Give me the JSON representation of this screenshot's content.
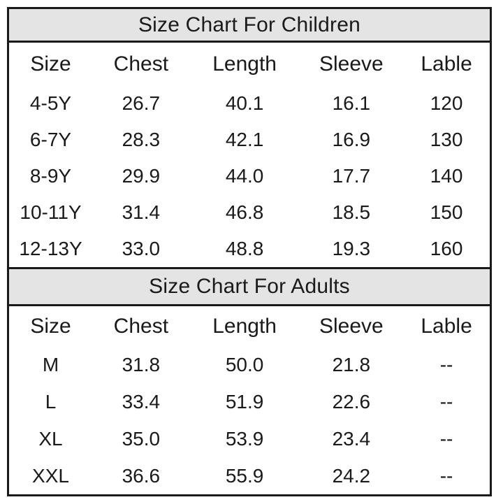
{
  "colors": {
    "page_bg": "#ffffff",
    "band_bg": "#e4e4e4",
    "border": "#1a1a1a",
    "text": "#1a1a1a"
  },
  "children_table": {
    "title": "Size Chart For Children",
    "columns": [
      "Size",
      "Chest",
      "Length",
      "Sleeve",
      "Lable"
    ],
    "rows": [
      [
        "4-5Y",
        "26.7",
        "40.1",
        "16.1",
        "120"
      ],
      [
        "6-7Y",
        "28.3",
        "42.1",
        "16.9",
        "130"
      ],
      [
        "8-9Y",
        "29.9",
        "44.0",
        "17.7",
        "140"
      ],
      [
        "10-11Y",
        "31.4",
        "46.8",
        "18.5",
        "150"
      ],
      [
        "12-13Y",
        "33.0",
        "48.8",
        "19.3",
        "160"
      ]
    ]
  },
  "adults_table": {
    "title": "Size Chart For Adults",
    "columns": [
      "Size",
      "Chest",
      "Length",
      "Sleeve",
      "Lable"
    ],
    "rows": [
      [
        "M",
        "31.8",
        "50.0",
        "21.8",
        "--"
      ],
      [
        "L",
        "33.4",
        "51.9",
        "22.6",
        "--"
      ],
      [
        "XL",
        "35.0",
        "53.9",
        "23.4",
        "--"
      ],
      [
        "XXL",
        "36.6",
        "55.9",
        "24.2",
        "--"
      ]
    ]
  },
  "chart_data": [
    {
      "type": "table",
      "title": "Size Chart For Children",
      "columns": [
        "Size",
        "Chest",
        "Length",
        "Sleeve",
        "Lable"
      ],
      "rows": [
        [
          "4-5Y",
          26.7,
          40.1,
          16.1,
          120
        ],
        [
          "6-7Y",
          28.3,
          42.1,
          16.9,
          130
        ],
        [
          "8-9Y",
          29.9,
          44.0,
          17.7,
          140
        ],
        [
          "10-11Y",
          31.4,
          46.8,
          18.5,
          150
        ],
        [
          "12-13Y",
          33.0,
          48.8,
          19.3,
          160
        ]
      ]
    },
    {
      "type": "table",
      "title": "Size Chart For Adults",
      "columns": [
        "Size",
        "Chest",
        "Length",
        "Sleeve",
        "Lable"
      ],
      "rows": [
        [
          "M",
          31.8,
          50.0,
          21.8,
          "--"
        ],
        [
          "L",
          33.4,
          51.9,
          22.6,
          "--"
        ],
        [
          "XL",
          35.0,
          53.9,
          23.4,
          "--"
        ],
        [
          "XXL",
          36.6,
          55.9,
          24.2,
          "--"
        ]
      ]
    }
  ]
}
